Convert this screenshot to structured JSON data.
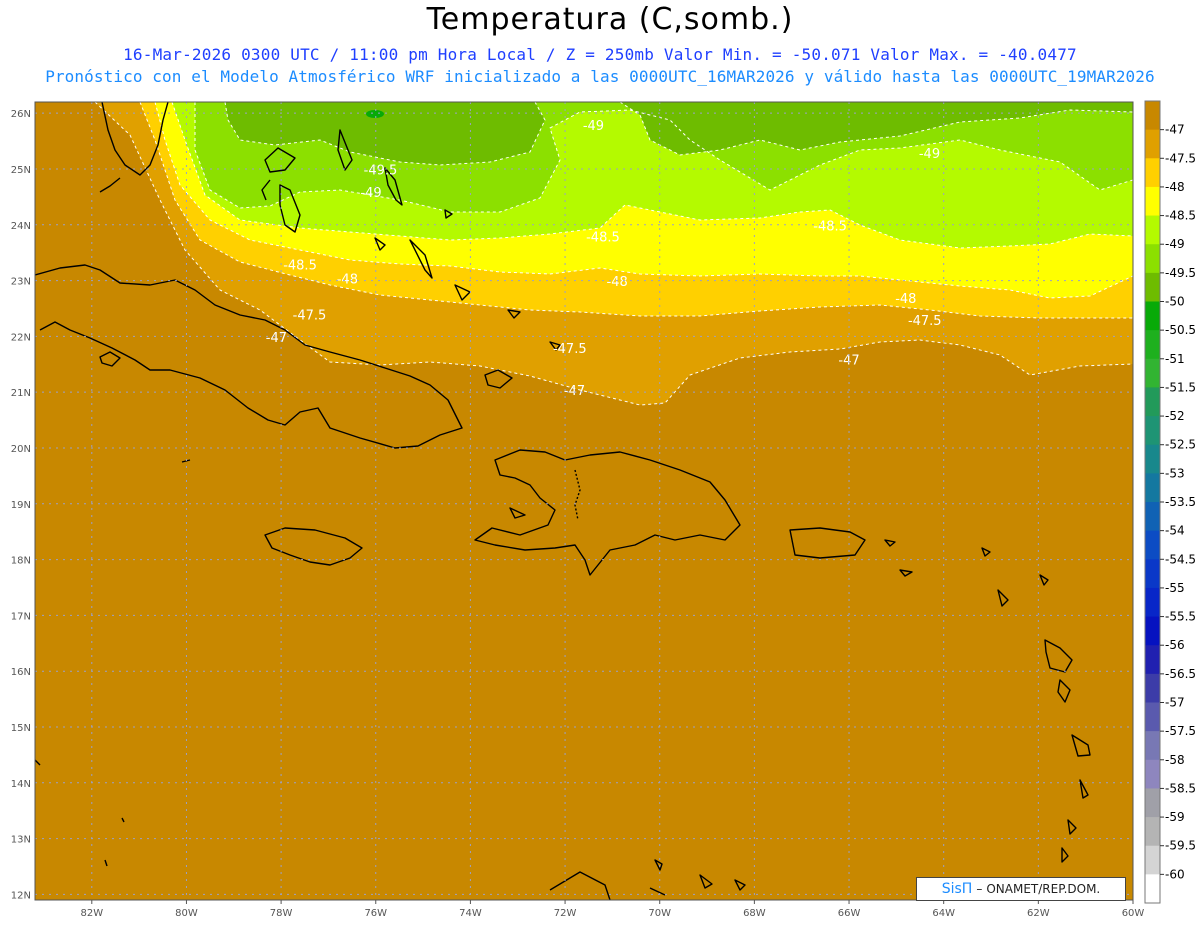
{
  "header": {
    "title": "Temperatura (C,somb.)",
    "subtitle1": "16-Mar-2026  0300 UTC / 11:00 pm Hora Local / Z = 250mb  Valor Min. = -50.071  Valor Max. = -40.0477",
    "subtitle2": "Pronóstico con el Modelo Atmosférico WRF inicializado a las 0000UTC_16MAR2026 y válido hasta las  0000UTC_19MAR2026"
  },
  "axes": {
    "lon_labels": [
      "82W",
      "80W",
      "78W",
      "76W",
      "74W",
      "72W",
      "70W",
      "68W",
      "66W",
      "64W",
      "62W",
      "60W"
    ],
    "lat_labels": [
      "26N",
      "25N",
      "24N",
      "23N",
      "22N",
      "21N",
      "20N",
      "19N",
      "18N",
      "17N",
      "16N",
      "15N",
      "14N",
      "13N",
      "12N"
    ]
  },
  "contour_labels": [
    {
      "text": "-49",
      "lon": -71.4,
      "lat": 25.7
    },
    {
      "text": "-49",
      "lon": -64.3,
      "lat": 25.2
    },
    {
      "text": "-49.5",
      "lon": -75.9,
      "lat": 24.9
    },
    {
      "text": "-49",
      "lon": -76.1,
      "lat": 24.5
    },
    {
      "text": "-48.5",
      "lon": -66.4,
      "lat": 23.9
    },
    {
      "text": "-48.5",
      "lon": -71.2,
      "lat": 23.7
    },
    {
      "text": "-48.5",
      "lon": -77.6,
      "lat": 23.2
    },
    {
      "text": "-48",
      "lon": -76.6,
      "lat": 22.95
    },
    {
      "text": "-48",
      "lon": -70.9,
      "lat": 22.9
    },
    {
      "text": "-48",
      "lon": -64.8,
      "lat": 22.6
    },
    {
      "text": "-47.5",
      "lon": -77.4,
      "lat": 22.3
    },
    {
      "text": "-47.5",
      "lon": -64.4,
      "lat": 22.2
    },
    {
      "text": "-47.5",
      "lon": -71.9,
      "lat": 21.7
    },
    {
      "text": "-47",
      "lon": -78.1,
      "lat": 21.9
    },
    {
      "text": "-47",
      "lon": -66.0,
      "lat": 21.5
    },
    {
      "text": "-47",
      "lon": -71.8,
      "lat": 20.95
    }
  ],
  "colorbar": {
    "levels": [
      "-47",
      "-47.5",
      "-48",
      "-48.5",
      "-49",
      "-49.5",
      "-50",
      "-50.5",
      "-51",
      "-51.5",
      "-52",
      "-52.5",
      "-53",
      "-53.5",
      "-54",
      "-54.5",
      "-55",
      "-55.5",
      "-56",
      "-56.5",
      "-57",
      "-57.5",
      "-58",
      "-58.5",
      "-59",
      "-59.5",
      "-60"
    ],
    "colors": [
      "#c88800",
      "#e0a000",
      "#ffd000",
      "#ffff00",
      "#b4fa00",
      "#8ce000",
      "#6ebc00",
      "#08aa08",
      "#1eb01e",
      "#32b432",
      "#229a5a",
      "#1e9474",
      "#18888c",
      "#1478a0",
      "#1062b4",
      "#0c4cc4",
      "#0a38c8",
      "#0826c8",
      "#0612c0",
      "#2020b0",
      "#3c3ca8",
      "#5a5aae",
      "#7878b4",
      "#8e86be",
      "#a0a0a8",
      "#b4b4b4",
      "#d4d4d4",
      "#ffffff"
    ]
  },
  "credit": {
    "brand": "SisΠ",
    "text": "ONAMET/REP.DOM."
  }
}
